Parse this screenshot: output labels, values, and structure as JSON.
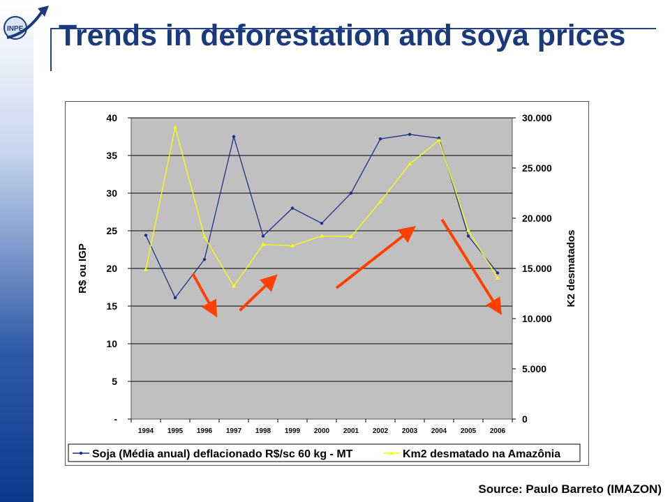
{
  "slide": {
    "title": "Trends in deforestation and soya prices",
    "source": "Source: Paulo Barreto (IMAZON)",
    "logo_text": "INPE",
    "accent_color": "#1a3a7c"
  },
  "chart_data": {
    "type": "line",
    "x": [
      "1994",
      "1995",
      "1996",
      "1997",
      "1998",
      "1999",
      "2000",
      "2001",
      "2002",
      "2003",
      "2004",
      "2005",
      "2006"
    ],
    "series": [
      {
        "name": "Soja (Média anual) deflacionado R$/sc 60 kg - MT",
        "axis": "left",
        "color": "#1c2f8f",
        "values": [
          24.4,
          16.1,
          21.2,
          37.5,
          24.3,
          28.0,
          26.0,
          30.0,
          37.2,
          37.8,
          37.3,
          24.3,
          19.4
        ]
      },
      {
        "name": "Km2 desmatado na Amazônia",
        "axis": "right",
        "color": "#ffff00",
        "values": [
          14896,
          29059,
          18161,
          13227,
          17383,
          17259,
          18226,
          18165,
          21651,
          25396,
          27772,
          18793,
          14039
        ]
      }
    ],
    "ylabel": "R$ ou IGP",
    "y2label": "K2 desmatados",
    "ylim": [
      0,
      40
    ],
    "y2lim": [
      0,
      30000
    ],
    "yticks": [
      "-",
      "5",
      "10",
      "15",
      "20",
      "25",
      "30",
      "35",
      "40"
    ],
    "y2ticks": [
      "0",
      "5.000",
      "10.000",
      "15.000",
      "20.000",
      "25.000",
      "30.000"
    ],
    "grid": true,
    "legend_position": "bottom",
    "plot_background": "#c0c0c0",
    "annotations": [
      {
        "type": "arrow",
        "color": "#ff4000",
        "from": [
          "1995.6",
          19.3
        ],
        "to": [
          "1996.3",
          14.4
        ]
      },
      {
        "type": "arrow",
        "color": "#ff4000",
        "from": [
          "1997.2",
          14.4
        ],
        "to": [
          "1998.3",
          18.5
        ]
      },
      {
        "type": "arrow",
        "color": "#ff4000",
        "from": [
          "2000.5",
          17.4
        ],
        "to": [
          "2003.0",
          25.0
        ]
      },
      {
        "type": "arrow",
        "color": "#ff4000",
        "from": [
          "2004.1",
          26.5
        ],
        "to": [
          "2006.0",
          14.7
        ]
      }
    ]
  }
}
